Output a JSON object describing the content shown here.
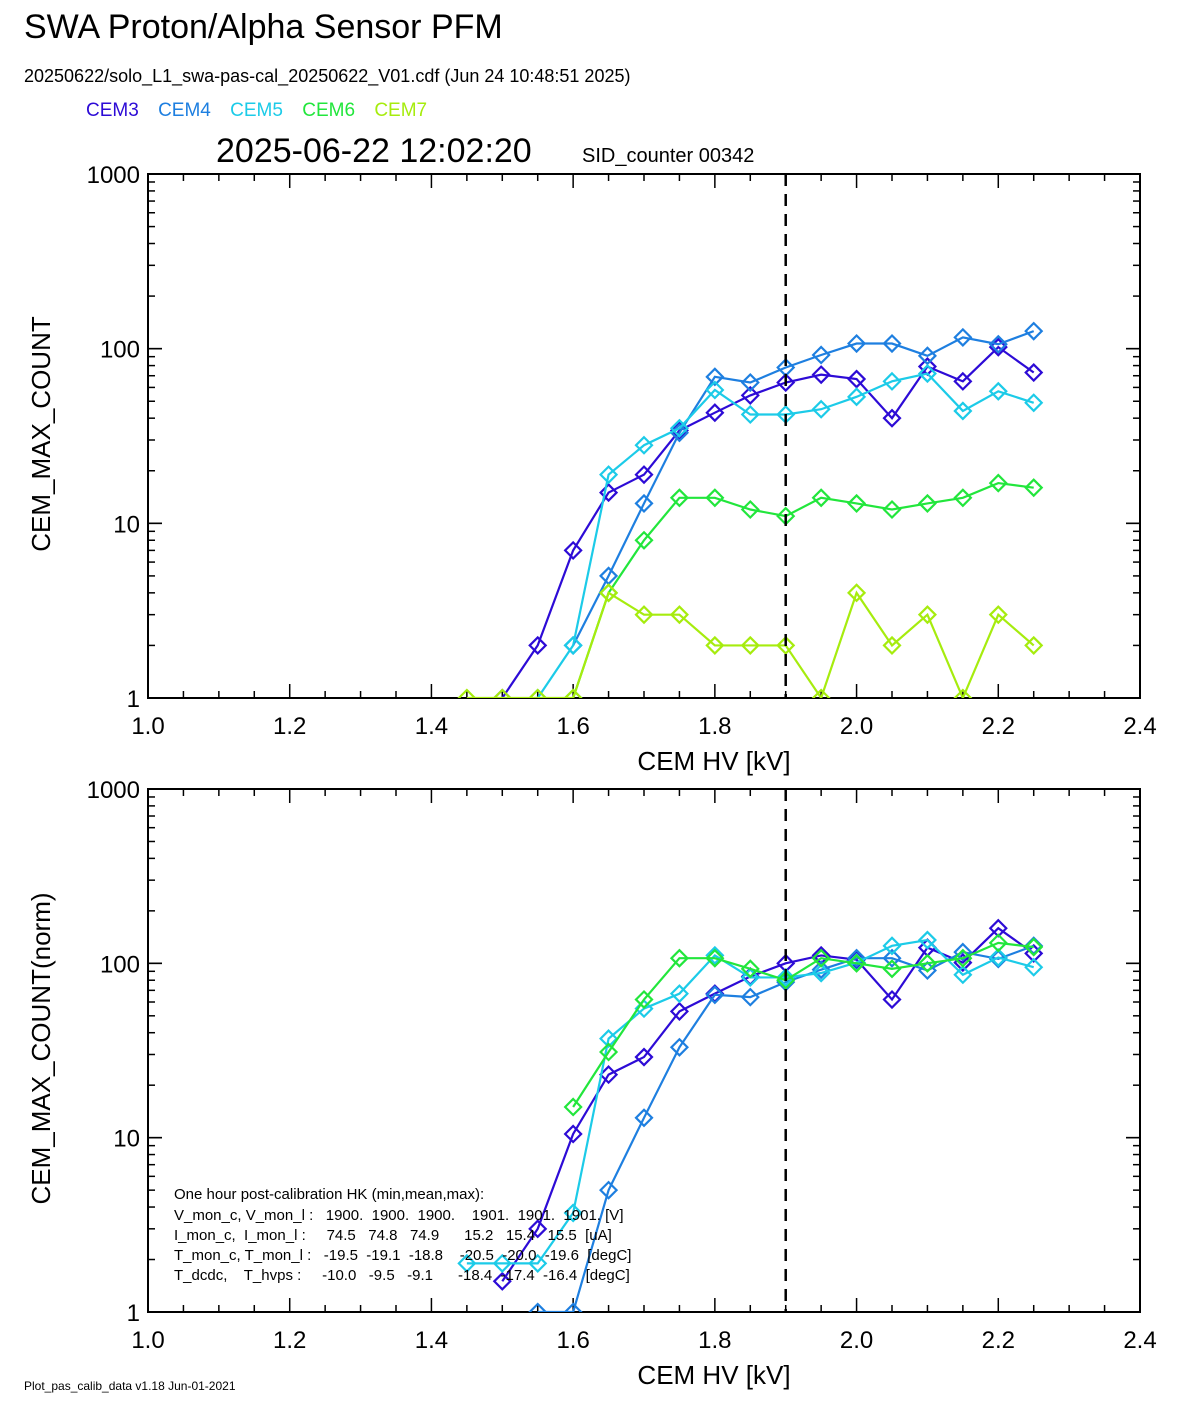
{
  "header": {
    "title": "SWA Proton/Alpha Sensor PFM",
    "subtitle": "20250622/solo_L1_swa-pas-cal_20250622_V01.cdf  (Jun 24 10:48:51 2025)",
    "timestamp": "2025-06-22 12:02:20",
    "sid_counter": "SID_counter 00342"
  },
  "legend": [
    {
      "name": "CEM3",
      "color": "#2d0bd6"
    },
    {
      "name": "CEM4",
      "color": "#1e7fe0"
    },
    {
      "name": "CEM5",
      "color": "#1ccbe8"
    },
    {
      "name": "CEM6",
      "color": "#22e63c"
    },
    {
      "name": "CEM7",
      "color": "#a6ec0e"
    }
  ],
  "footer": "Plot_pas_calib_data v1.18 Jun-01-2021",
  "hk_text": {
    "title": "One hour post-calibration HK (min,mean,max):",
    "rows": [
      "V_mon_c, V_mon_l :   1900.  1900.  1900.    1901.  1901.  1901. [V]",
      "I_mon_c,  I_mon_l :     74.5   74.8   74.9      15.2   15.4   15.5  [uA]",
      "T_mon_c, T_mon_l :   -19.5  -19.1  -18.8    -20.5  -20.0  -19.6  [degC]",
      "T_dcdc,    T_hvps :     -10.0   -9.5   -9.1      -18.4  -17.4  -16.4  [degC]"
    ]
  },
  "chart_data": [
    {
      "type": "line",
      "xlabel": "CEM HV [kV]",
      "ylabel": "CEM_MAX_COUNT",
      "xlim": [
        1.0,
        2.4
      ],
      "ylim": [
        1,
        1000
      ],
      "yscale": "log",
      "xticks": [
        "1.0",
        "1.2",
        "1.4",
        "1.6",
        "1.8",
        "2.0",
        "2.2",
        "2.4"
      ],
      "yticks": [
        "1",
        "10",
        "100",
        "1000"
      ],
      "vline_x": 1.9,
      "x": [
        1.45,
        1.5,
        1.55,
        1.6,
        1.65,
        1.7,
        1.75,
        1.8,
        1.85,
        1.9,
        1.95,
        2.0,
        2.05,
        2.1,
        2.15,
        2.2,
        2.25
      ],
      "series": [
        {
          "name": "CEM3",
          "color": "#2d0bd6",
          "values": [
            null,
            1,
            2,
            7,
            15,
            19,
            34,
            43,
            54,
            64,
            71,
            67,
            40,
            79,
            65,
            102,
            73
          ]
        },
        {
          "name": "CEM4",
          "color": "#1e7fe0",
          "values": [
            null,
            null,
            null,
            2,
            5,
            13,
            33,
            69,
            64,
            78,
            92,
            107,
            107,
            91,
            116,
            106,
            126
          ]
        },
        {
          "name": "CEM5",
          "color": "#1ccbe8",
          "values": [
            null,
            null,
            1,
            2,
            19,
            28,
            35,
            58,
            42,
            42,
            45,
            53,
            65,
            72,
            44,
            57,
            49
          ]
        },
        {
          "name": "CEM6",
          "color": "#22e63c",
          "values": [
            null,
            null,
            null,
            1,
            4,
            8,
            14,
            14,
            12,
            11,
            14,
            13,
            12,
            13,
            14,
            17,
            16
          ]
        },
        {
          "name": "CEM7",
          "color": "#a6ec0e",
          "values": [
            1,
            1,
            1,
            1,
            4,
            3,
            3,
            2,
            2,
            2,
            1,
            4,
            2,
            3,
            1,
            3,
            2
          ]
        }
      ]
    },
    {
      "type": "line",
      "xlabel": "CEM HV [kV]",
      "ylabel": "CEM_MAX_COUNT(norm)",
      "xlim": [
        1.0,
        2.4
      ],
      "ylim": [
        1,
        1000
      ],
      "yscale": "log",
      "xticks": [
        "1.0",
        "1.2",
        "1.4",
        "1.6",
        "1.8",
        "2.0",
        "2.2",
        "2.4"
      ],
      "yticks": [
        "1",
        "10",
        "100",
        "1000"
      ],
      "vline_x": 1.9,
      "x": [
        1.45,
        1.5,
        1.55,
        1.6,
        1.65,
        1.7,
        1.75,
        1.8,
        1.85,
        1.9,
        1.95,
        2.0,
        2.05,
        2.1,
        2.15,
        2.2,
        2.25
      ],
      "series": [
        {
          "name": "CEM3",
          "color": "#2d0bd6",
          "values": [
            null,
            1.5,
            3,
            10.5,
            23,
            29,
            53,
            67,
            84,
            100,
            111,
            105,
            62,
            123,
            101,
            159,
            114
          ]
        },
        {
          "name": "CEM4",
          "color": "#1e7fe0",
          "values": [
            null,
            null,
            1,
            1,
            5,
            13,
            33,
            66,
            64,
            78,
            92,
            107,
            107,
            91,
            116,
            106,
            126
          ]
        },
        {
          "name": "CEM5",
          "color": "#1ccbe8",
          "values": [
            1.9,
            1.9,
            1.9,
            3.7,
            37,
            55,
            67,
            111,
            83,
            83,
            88,
            101,
            126,
            136,
            86,
            108,
            95
          ]
        },
        {
          "name": "CEM6",
          "color": "#22e63c",
          "values": [
            null,
            null,
            null,
            15,
            31,
            62,
            107,
            107,
            93,
            80,
            107,
            100,
            93,
            100,
            107,
            131,
            124
          ]
        }
      ]
    }
  ]
}
